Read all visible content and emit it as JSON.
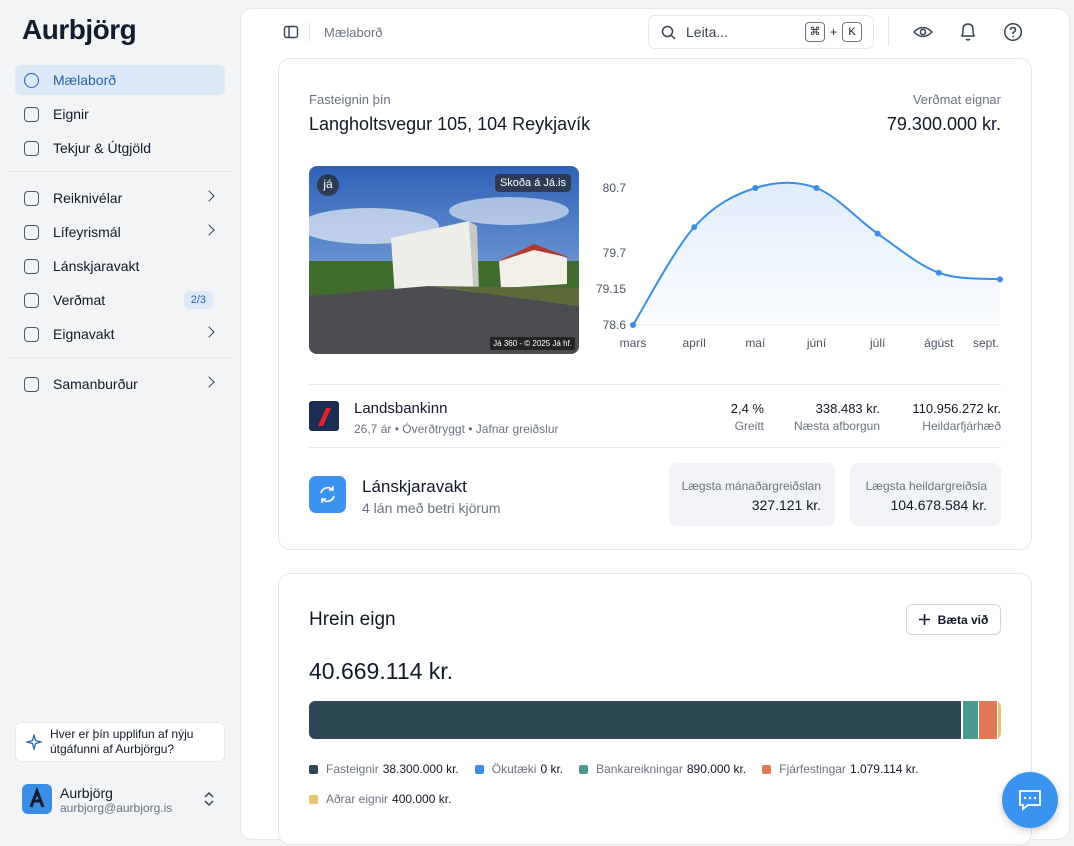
{
  "sidebar": {
    "logo": "Aurbjörg",
    "nav_groups": [
      [
        {
          "label": "Mælaborð",
          "active": true
        },
        {
          "label": "Eignir"
        },
        {
          "label": "Tekjur & Útgjöld"
        }
      ],
      [
        {
          "label": "Reiknivélar",
          "submenu": true
        },
        {
          "label": "Lífeyrismál",
          "submenu": true
        },
        {
          "label": "Lánskjaravakt"
        },
        {
          "label": "Verðmat",
          "badge": "2/3"
        },
        {
          "label": "Eignavakt",
          "submenu": true
        }
      ],
      [
        {
          "label": "Samanburður",
          "submenu": true
        }
      ]
    ],
    "feedback": "Hver er þín upplifun af nýju útgáfunni af Aurbjörgu?",
    "user": {
      "name": "Aurbjörg",
      "email": "aurbjorg@aurbjorg.is"
    }
  },
  "topbar": {
    "breadcrumb": "Mælaborð",
    "search_placeholder": "Leita...",
    "shortcut": [
      "⌘",
      "+",
      "K"
    ]
  },
  "property": {
    "label": "Fasteignin þín",
    "address": "Langholtsvegur 105, 104 Reykjavík",
    "valuation_label": "Verðmat eignar",
    "valuation": "79.300.000 kr.",
    "photo": {
      "logo": "já",
      "link": "Skoða á Já.is",
      "credit": "Já 360 - © 2025 Já hf."
    }
  },
  "loan": {
    "bank": "Landsbankinn",
    "details": "26,7 ár • Óverðtryggt • Jafnar greiðslur",
    "stats": [
      {
        "value": "2,4 %",
        "label": "Greitt"
      },
      {
        "value": "338.483 kr.",
        "label": "Næsta afborgun"
      },
      {
        "value": "110.956.272 kr.",
        "label": "Heildarfjárhæð"
      }
    ]
  },
  "loan_watch": {
    "title": "Lánskjaravakt",
    "subtitle": "4 lán með betri kjörum",
    "boxes": [
      {
        "label": "Lægsta mánaðargreiðslan",
        "value": "327.121 kr."
      },
      {
        "label": "Lægsta heildargreiðsla",
        "value": "104.678.584 kr."
      }
    ]
  },
  "net_worth": {
    "title": "Hrein eign",
    "add_button": "Bæta við",
    "total": "40.669.114 kr."
  },
  "chart_data": [
    {
      "type": "line",
      "categories": [
        "mars",
        "apríl",
        "maí",
        "júní",
        "júlí",
        "ágúst",
        "sept."
      ],
      "values": [
        78.6,
        80.1,
        80.7,
        80.7,
        80.0,
        79.4,
        79.3
      ],
      "color": "#3b8de6",
      "ylim": [
        78.6,
        80.7
      ],
      "yticks": [
        78.6,
        79.15,
        79.7,
        80.7
      ],
      "grid": false
    },
    {
      "type": "stacked-bar",
      "series": [
        {
          "name": "Fasteignir",
          "color": "#2e4754",
          "values": [
            38300000
          ],
          "value_labels": [
            "38.300.000 kr."
          ]
        },
        {
          "name": "Ökutæki",
          "color": "#3b8de6",
          "values": [
            0
          ],
          "value_labels": [
            "0 kr."
          ]
        },
        {
          "name": "Bankareikningar",
          "color": "#4a9a90",
          "values": [
            890000
          ],
          "value_labels": [
            "890.000 kr."
          ]
        },
        {
          "name": "Fjárfestingar",
          "color": "#e07a55",
          "values": [
            1079114
          ],
          "value_labels": [
            "1.079.114 kr."
          ]
        },
        {
          "name": "Aðrar eignir",
          "color": "#e6c56e",
          "values": [
            400000
          ],
          "value_labels": [
            "400.000 kr."
          ]
        }
      ]
    }
  ]
}
